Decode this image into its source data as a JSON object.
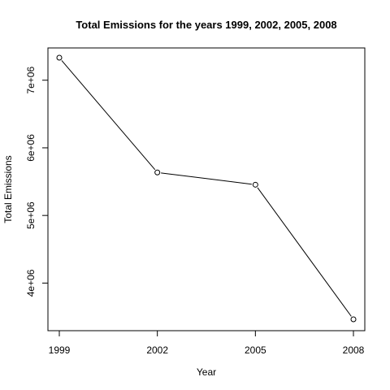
{
  "chart_data": {
    "type": "line",
    "title": "Total Emissions for the years 1999, 2002, 2005, 2008",
    "xlabel": "Year",
    "ylabel": "Total Emissions",
    "categories": [
      "1999",
      "2002",
      "2005",
      "2008"
    ],
    "x": [
      1999,
      2002,
      2005,
      2008
    ],
    "series": [
      {
        "values": [
          7332967,
          5635780,
          5454703,
          3464206
        ]
      }
    ],
    "xlim": [
      1999,
      2008
    ],
    "ylim": [
      3464206,
      7332967
    ],
    "yticks": [
      4000000,
      5000000,
      6000000,
      7000000
    ],
    "ytick_labels": [
      "4e+06",
      "5e+06",
      "6e+06",
      "7e+06"
    ],
    "markers": "open-circle",
    "line_color": "#000000",
    "grid": false,
    "legend": false
  }
}
